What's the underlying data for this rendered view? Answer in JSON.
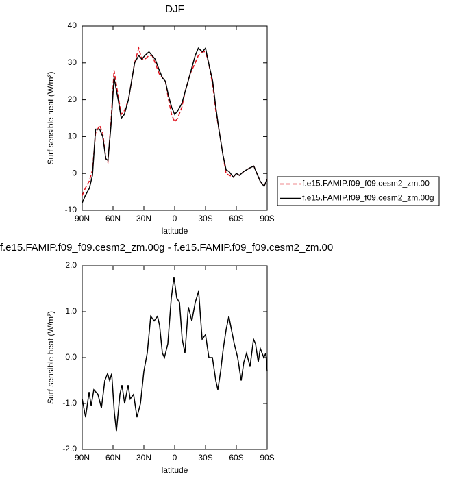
{
  "chart_data": [
    {
      "type": "line",
      "title": "DJF",
      "xlabel": "latitude",
      "ylabel": "Surf sensible heat (W/m²)",
      "x": [
        90,
        87,
        83,
        80,
        77,
        73,
        70,
        67,
        65,
        62,
        59,
        55,
        52,
        49,
        45,
        42,
        39,
        35,
        32,
        29,
        25,
        22,
        19,
        15,
        12,
        9,
        6,
        3,
        0,
        -3,
        -7,
        -10,
        -15,
        -20,
        -23,
        -27,
        -30,
        -33,
        -37,
        -40,
        -43,
        -47,
        -50,
        -53,
        -57,
        -60,
        -63,
        -67,
        -70,
        -73,
        -77,
        -80,
        -83,
        -87,
        -90
      ],
      "series": [
        {
          "name": "f.e15.FAMIP.f09_f09.cesm2_zm.00",
          "color": "#e0141e",
          "line_style": "dashed",
          "values": [
            -6,
            -4,
            -2,
            1,
            11,
            13,
            11,
            4,
            3,
            14,
            28,
            21,
            16,
            17,
            20,
            25,
            30,
            34,
            31,
            31,
            32,
            32,
            30,
            27,
            26,
            25,
            20,
            16,
            14,
            15,
            18,
            22,
            27,
            30,
            32,
            33,
            33,
            30,
            24,
            17,
            12,
            5,
            0,
            -0.5,
            -1,
            0,
            -0.5,
            0.5,
            1,
            1.5,
            2,
            0,
            -2,
            -3.5,
            -1.5
          ]
        },
        {
          "name": "f.e15.FAMIP.f09_f09.cesm2_zm.00g",
          "color": "#000000",
          "line_style": "solid",
          "values": [
            -8,
            -6,
            -4,
            -0.5,
            12,
            12,
            10,
            4,
            3.5,
            13,
            26,
            20,
            15,
            16,
            20,
            25,
            30,
            32,
            31,
            32,
            33,
            32,
            31,
            28,
            26,
            25,
            21,
            18,
            16,
            17,
            19,
            22,
            27,
            32,
            34,
            33,
            34,
            30,
            25,
            18,
            12,
            5,
            1,
            0.5,
            -1,
            0,
            -0.5,
            0.5,
            1,
            1.5,
            2,
            0,
            -2,
            -3.5,
            -1.5
          ]
        }
      ],
      "xlim": [
        90,
        -90
      ],
      "xticks": [
        {
          "value": 90,
          "label": "90N"
        },
        {
          "value": 60,
          "label": "60N"
        },
        {
          "value": 30,
          "label": "30N"
        },
        {
          "value": 0,
          "label": "0"
        },
        {
          "value": -30,
          "label": "30S"
        },
        {
          "value": -60,
          "label": "60S"
        },
        {
          "value": -90,
          "label": "90S"
        }
      ],
      "ylim": [
        -10,
        40
      ],
      "yticks": [
        40,
        30,
        20,
        10,
        0,
        -10
      ],
      "legend": "right"
    },
    {
      "type": "line",
      "title": "f.e15.FAMIP.f09_f09.cesm2_zm.00g - f.e15.FAMIP.f09_f09.cesm2_zm.00",
      "xlabel": "latitude",
      "ylabel": "Surf sensible heat (W/m²)",
      "x": [
        90,
        86.7,
        83.3,
        81.3,
        78.7,
        74.7,
        71.3,
        68,
        65.3,
        63.3,
        61.3,
        58.7,
        56.7,
        53.3,
        51.3,
        48.7,
        45.3,
        43.3,
        40,
        36.7,
        33.3,
        30,
        26.7,
        23.3,
        20,
        16.7,
        14.7,
        12,
        10,
        6.7,
        3.3,
        0.7,
        -2,
        -4.7,
        -7.3,
        -10,
        -13.3,
        -16.7,
        -20,
        -23.3,
        -26.7,
        -30,
        -33.3,
        -36.7,
        -40,
        -42,
        -44.7,
        -47.3,
        -50,
        -52.7,
        -55.3,
        -58,
        -61.3,
        -64.7,
        -67.3,
        -70,
        -73.3,
        -76.7,
        -78.7,
        -81.3,
        -83.3,
        -86.7,
        -88.7,
        -90
      ],
      "values": [
        -0.9,
        -1.3,
        -0.75,
        -1.05,
        -0.7,
        -0.8,
        -1.1,
        -0.5,
        -0.35,
        -0.5,
        -0.35,
        -1.2,
        -1.6,
        -0.8,
        -0.6,
        -1.0,
        -0.6,
        -0.9,
        -0.8,
        -1.3,
        -1.0,
        -0.3,
        0.1,
        0.9,
        0.8,
        0.9,
        0.7,
        0.1,
        0.0,
        0.3,
        1.3,
        1.75,
        1.3,
        1.2,
        0.4,
        0.1,
        1.1,
        0.8,
        1.2,
        1.45,
        0.4,
        0.5,
        0.0,
        0.0,
        -0.5,
        -0.7,
        -0.3,
        0.2,
        0.6,
        0.9,
        0.6,
        0.3,
        0.0,
        -0.5,
        -0.1,
        0.1,
        -0.2,
        0.4,
        0.3,
        -0.1,
        0.2,
        0.0,
        0.1,
        -0.3
      ],
      "color": "#000000",
      "xlim": [
        90,
        -90
      ],
      "xticks": [
        {
          "value": 90,
          "label": "90N"
        },
        {
          "value": 60,
          "label": "60N"
        },
        {
          "value": 30,
          "label": "30N"
        },
        {
          "value": 0,
          "label": "0"
        },
        {
          "value": -30,
          "label": "30S"
        },
        {
          "value": -60,
          "label": "60S"
        },
        {
          "value": -90,
          "label": "90S"
        }
      ],
      "ylim": [
        -2,
        2
      ],
      "yticks": [
        {
          "value": 2,
          "label": "2.0"
        },
        {
          "value": 1,
          "label": "1.0"
        },
        {
          "value": 0,
          "label": "0.0"
        },
        {
          "value": -1,
          "label": "-1.0"
        },
        {
          "value": -2,
          "label": "-2.0"
        }
      ]
    }
  ]
}
